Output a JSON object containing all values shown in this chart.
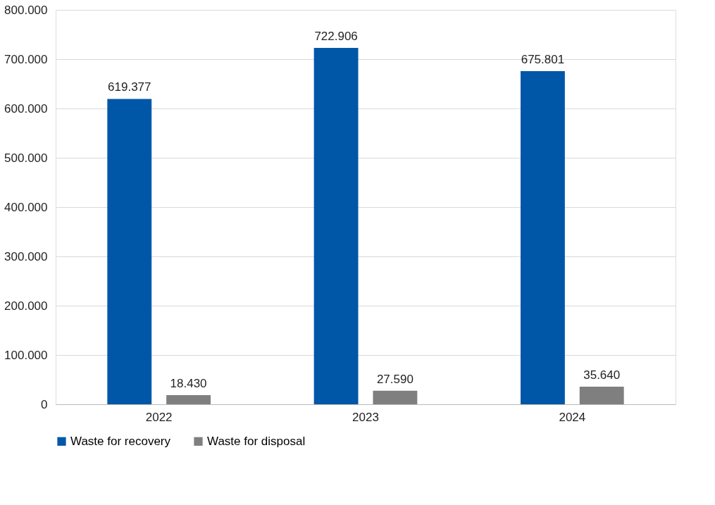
{
  "chart_data": {
    "type": "bar",
    "categories": [
      "2022",
      "2023",
      "2024"
    ],
    "series": [
      {
        "name": "Waste for recovery",
        "color": "#0057a8",
        "values": [
          619377,
          722906,
          675801
        ],
        "value_labels": [
          "619.377",
          "722.906",
          "675.801"
        ]
      },
      {
        "name": "Waste for disposal",
        "color": "#7f7f7f",
        "values": [
          18430,
          27590,
          35640
        ],
        "value_labels": [
          "18.430",
          "27.590",
          "35.640"
        ]
      }
    ],
    "ylim": [
      0,
      800000
    ],
    "yticks": [
      0,
      {
        "value": 100000,
        "label": "100.000"
      },
      {
        "value": 200000,
        "label": "200.000"
      },
      {
        "value": 300000,
        "label": "300.000"
      },
      {
        "value": 400000,
        "label": "400.000"
      },
      {
        "value": 500000,
        "label": "500.000"
      },
      {
        "value": 600000,
        "label": "600.000"
      },
      {
        "value": 700000,
        "label": "700.000"
      },
      {
        "value": 800000,
        "label": "800.000"
      }
    ],
    "grid": "y",
    "legend": "bottom"
  }
}
